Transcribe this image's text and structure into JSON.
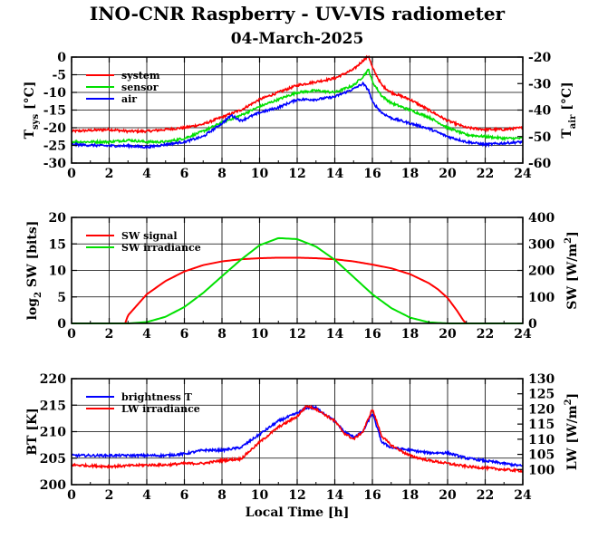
{
  "header": {
    "title": "INO-CNR Raspberry - UV-VIS radiometer",
    "date": "04-March-2025"
  },
  "chart_data": [
    {
      "type": "line",
      "name": "temperatures",
      "xlabel": "",
      "ylabel": "T",
      "ylabel_sub": "sys",
      "ylabel_unit": " [°C]",
      "y2label": "T",
      "y2label_sub": "air",
      "y2label_unit": " [°C]",
      "xlim": [
        0,
        24
      ],
      "ylim": [
        -30,
        0
      ],
      "y2lim": [
        -60,
        -20
      ],
      "xticks": [
        0,
        2,
        4,
        6,
        8,
        10,
        12,
        14,
        16,
        18,
        20,
        22,
        24
      ],
      "yticks": [
        0,
        -5,
        -10,
        -15,
        -20,
        -25,
        -30
      ],
      "y2ticks": [
        -20,
        -30,
        -40,
        -50,
        -60
      ],
      "grid": true,
      "legend_position": "top-left",
      "series": [
        {
          "name": "system",
          "color": "#ff0000",
          "axis": "left",
          "x": [
            0,
            2,
            3,
            4,
            5,
            6,
            7,
            8,
            9,
            10,
            11,
            12,
            13,
            14,
            15,
            15.5,
            15.8,
            16,
            16.5,
            17,
            18,
            19,
            20,
            21,
            22,
            23,
            24
          ],
          "y": [
            -21,
            -20.5,
            -21,
            -21,
            -20.5,
            -20,
            -19,
            -17,
            -15,
            -12,
            -10,
            -8,
            -7,
            -6,
            -3.5,
            -1,
            0.3,
            -3,
            -8,
            -10,
            -12,
            -15,
            -18,
            -20,
            -20.5,
            -20.5,
            -20
          ]
        },
        {
          "name": "sensor",
          "color": "#00e000",
          "axis": "left",
          "x": [
            0,
            2,
            3,
            4,
            5,
            6,
            7,
            8,
            9,
            10,
            11,
            12,
            13,
            14,
            15,
            15.5,
            15.8,
            16,
            16.5,
            17,
            18,
            19,
            20,
            21,
            22,
            23,
            24
          ],
          "y": [
            -24,
            -24,
            -23.5,
            -24,
            -24,
            -23,
            -21,
            -18.5,
            -16.5,
            -14,
            -12,
            -10,
            -9.5,
            -10,
            -8,
            -5.5,
            -3.5,
            -7,
            -11,
            -13,
            -15,
            -17,
            -20,
            -22,
            -22.5,
            -23,
            -23
          ]
        },
        {
          "name": "air",
          "color": "#0000ff",
          "axis": "right",
          "x": [
            0,
            2,
            3,
            4,
            5,
            6,
            7,
            8,
            8.5,
            9,
            10,
            11,
            12,
            13,
            14,
            15,
            15.5,
            15.8,
            16,
            16.5,
            17,
            18,
            19,
            20,
            21,
            22,
            23,
            24
          ],
          "y": [
            -53,
            -53.5,
            -53.5,
            -54,
            -53,
            -52,
            -50,
            -45,
            -42,
            -44,
            -41,
            -39,
            -36,
            -36,
            -35,
            -32,
            -30,
            -32.5,
            -37,
            -41,
            -43,
            -45,
            -47,
            -50,
            -52,
            -53,
            -52.5,
            -52
          ]
        }
      ],
      "spikes": [
        {
          "x": 8.6,
          "y": -17.5
        }
      ]
    },
    {
      "type": "line",
      "name": "shortwave",
      "xlabel": "",
      "ylabel": "log",
      "ylabel_sub": "2",
      "ylabel_unit": " SW [bits]",
      "y2label": "SW [W/m",
      "y2label_sup": "2",
      "y2label_unit": "]",
      "xlim": [
        0,
        24
      ],
      "ylim": [
        0,
        20
      ],
      "y2lim": [
        0,
        400
      ],
      "xticks": [
        0,
        2,
        4,
        6,
        8,
        10,
        12,
        14,
        16,
        18,
        20,
        22,
        24
      ],
      "yticks": [
        0,
        5,
        10,
        15,
        20
      ],
      "y2ticks": [
        0,
        100,
        200,
        300,
        400
      ],
      "grid": true,
      "legend_position": "top-left",
      "series": [
        {
          "name": "SW signal",
          "color": "#ff0000",
          "axis": "left",
          "x": [
            2.85,
            3.0,
            3.5,
            4,
            5,
            6,
            7,
            8,
            9,
            10,
            11,
            12,
            13,
            14,
            15,
            16,
            17,
            18,
            19,
            19.5,
            20,
            20.5,
            20.85,
            21.0
          ],
          "y": [
            0,
            1.5,
            3.5,
            5.5,
            8.0,
            9.8,
            11.0,
            11.7,
            12.1,
            12.3,
            12.4,
            12.4,
            12.3,
            12.1,
            11.7,
            11.1,
            10.4,
            9.3,
            7.6,
            6.4,
            4.8,
            2.4,
            0.5,
            0
          ]
        },
        {
          "name": "SW irradiance",
          "color": "#00e000",
          "axis": "right",
          "x": [
            0,
            3,
            4,
            5,
            6,
            7,
            8,
            9,
            10,
            11,
            12,
            13,
            14,
            15,
            16,
            17,
            18,
            19,
            20,
            24
          ],
          "y": [
            0,
            0,
            5,
            25,
            62,
            115,
            178,
            240,
            295,
            322,
            318,
            290,
            240,
            175,
            110,
            58,
            22,
            4,
            0,
            0
          ]
        }
      ]
    },
    {
      "type": "line",
      "name": "longwave",
      "xlabel": "Local Time [h]",
      "ylabel": "BT [K]",
      "y2label": "LW [W/m",
      "y2label_sup": "2",
      "y2label_unit": "]",
      "xlim": [
        0,
        24
      ],
      "ylim": [
        200,
        220
      ],
      "y2lim": [
        95,
        130
      ],
      "xticks": [
        0,
        2,
        4,
        6,
        8,
        10,
        12,
        14,
        16,
        18,
        20,
        22,
        24
      ],
      "yticks": [
        200,
        205,
        210,
        215,
        220
      ],
      "y2ticks": [
        100,
        105,
        110,
        115,
        120,
        125,
        130
      ],
      "grid": true,
      "legend_position": "top-left",
      "series": [
        {
          "name": "brightness T",
          "color": "#0000ff",
          "axis": "left",
          "x": [
            0,
            2,
            4,
            5,
            6,
            7,
            8,
            9,
            10,
            11,
            12,
            12.5,
            13,
            14,
            14.5,
            15,
            15.5,
            16,
            16.5,
            17,
            18,
            19,
            20,
            21,
            22,
            23,
            24
          ],
          "y": [
            205.5,
            205.5,
            205.5,
            205.5,
            205.8,
            206.5,
            206.5,
            207,
            209.5,
            212,
            213.5,
            214.5,
            214.5,
            212,
            210,
            209,
            210,
            213.5,
            208,
            207,
            206.5,
            206,
            206,
            205,
            204.5,
            204,
            203.5
          ]
        },
        {
          "name": "LW irradiance",
          "color": "#ff0000",
          "axis": "right",
          "x": [
            0,
            2,
            4,
            5,
            6,
            7,
            8,
            9,
            10,
            11,
            12,
            12.5,
            13,
            14,
            14.5,
            15,
            15.5,
            16,
            16.5,
            17,
            18,
            19,
            20,
            21,
            22,
            23,
            24
          ],
          "y": [
            101.5,
            101,
            101.5,
            101.5,
            102,
            102,
            103,
            103.5,
            109,
            114,
            117.5,
            121,
            120,
            116,
            112,
            110,
            112.5,
            120,
            111,
            108,
            104.5,
            103,
            102,
            101,
            100.5,
            100,
            99.5
          ]
        }
      ]
    }
  ]
}
